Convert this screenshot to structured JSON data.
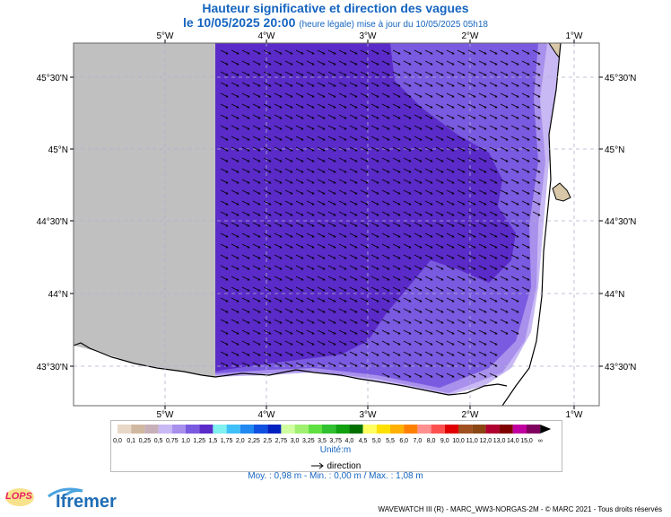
{
  "header": {
    "title": "Hauteur significative et direction des vagues",
    "date_line": "le 10/05/2025 20:00",
    "update_note": "(heure légale) mise à jour du 10/05/2025 05h18"
  },
  "map": {
    "lon_ticks": [
      "5°W",
      "4°W",
      "3°W",
      "2°W",
      "1°W"
    ],
    "lat_ticks": [
      "45°30'N",
      "45°N",
      "44°30'N",
      "44°N",
      "43°30'N"
    ],
    "colors": {
      "no_data": "#c0c0c0",
      "dark": "#5a2bc8",
      "mid": "#7a5ae0",
      "light": "#a890ec",
      "pale": "#c8b8f4",
      "land": "#d8c8a8"
    }
  },
  "legend": {
    "labels": [
      "0,0",
      "0,1",
      "0,25",
      "0,5",
      "0,75",
      "1,0",
      "1,25",
      "1,5",
      "1,75",
      "2,0",
      "2,25",
      "2,5",
      "2,75",
      "3,0",
      "3,25",
      "3,5",
      "3,75",
      "4,0",
      "4,5",
      "5,0",
      "5,5",
      "6,0",
      "7,0",
      "8,0",
      "9,0",
      "10,0",
      "11,0",
      "12,0",
      "13,0",
      "14,0",
      "15,0",
      "∞"
    ],
    "colors": [
      "#e8d8c8",
      "#d0b8a0",
      "#c8b0b8",
      "#c8b8f4",
      "#a890ec",
      "#7a5ae0",
      "#5a2bc8",
      "#80f0f0",
      "#40c0f8",
      "#2088f0",
      "#1050e0",
      "#0020c0",
      "#d0ffa0",
      "#a0f070",
      "#60e040",
      "#30c030",
      "#10a010",
      "#007000",
      "#ffff60",
      "#ffe000",
      "#ffb000",
      "#ff8000",
      "#ff9090",
      "#ff5050",
      "#e00000",
      "#a05020",
      "#8b4513",
      "#b00030",
      "#800000",
      "#c000a0",
      "#800060"
    ],
    "unit": "Unité:m",
    "direction_label": "direction",
    "stats": "Moy. : 0,98 m   -   Min. : 0,00 m / Max. : 1,08 m"
  },
  "footer": {
    "credits": "WAVEWATCH III (R) - MARC_WW3-NORGAS-2M - © MARC 2021 - Tous droits réservés",
    "logo_lops": "LOPS",
    "logo_ifremer": "Ifremer"
  }
}
